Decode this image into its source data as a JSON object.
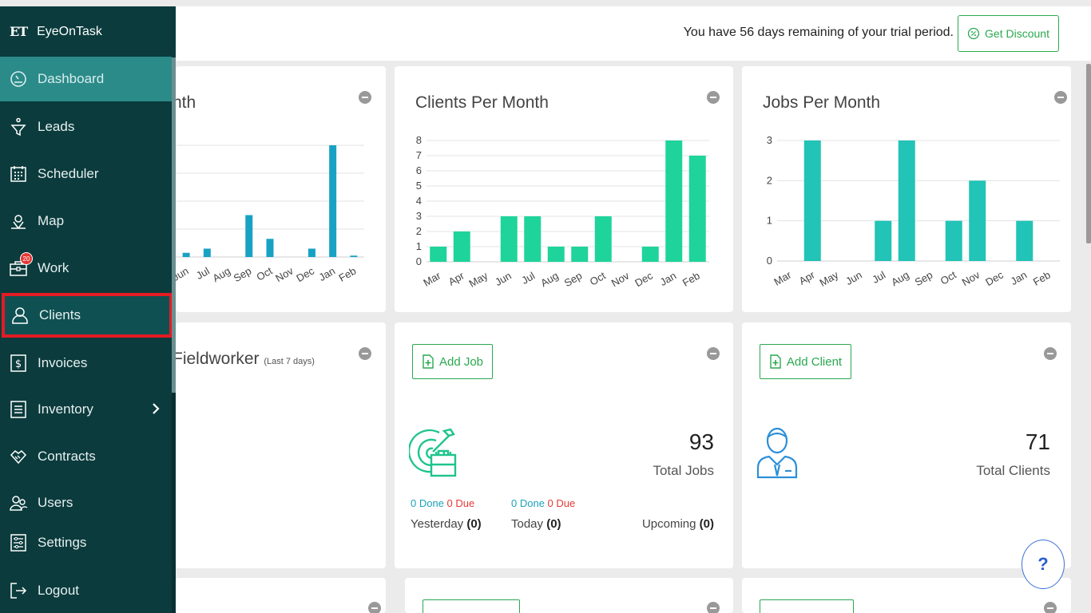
{
  "brand": {
    "logo": "ET",
    "name": "EyeOnTask"
  },
  "sidebar": {
    "items": [
      {
        "label": "Dashboard",
        "icon": "gauge-icon"
      },
      {
        "label": "Leads",
        "icon": "funnel-icon"
      },
      {
        "label": "Scheduler",
        "icon": "calendar-icon"
      },
      {
        "label": "Map",
        "icon": "map-pin-icon"
      },
      {
        "label": "Work",
        "icon": "briefcase-icon",
        "badge": "20"
      },
      {
        "label": "Clients",
        "icon": "user-icon"
      },
      {
        "label": "Invoices",
        "icon": "dollar-icon"
      },
      {
        "label": "Inventory",
        "icon": "list-icon"
      },
      {
        "label": "Contracts",
        "icon": "handshake-icon"
      },
      {
        "label": "Users",
        "icon": "users-icon"
      },
      {
        "label": "Settings",
        "icon": "sliders-icon"
      },
      {
        "label": "Logout",
        "icon": "logout-icon"
      }
    ]
  },
  "topbar": {
    "trial_text": "You have 56 days remaining of your trial period.",
    "discount_label": "Get Discount"
  },
  "cards": {
    "leads_title": "nth",
    "clients_title": "Clients Per Month",
    "jobs_title": "Jobs Per Month",
    "fieldworker_title": "Fieldworker",
    "fieldworker_sub": "(Last 7 days)",
    "add_job": "Add Job",
    "add_client": "Add Client",
    "total_jobs": "93",
    "total_jobs_label": "Total Jobs",
    "total_clients": "71",
    "total_clients_label": "Total Clients",
    "yesterday_done": "0 Done",
    "yesterday_due": "0 Due",
    "today_done": "0 Done",
    "today_due": "0 Due",
    "yesterday_label": "Yesterday",
    "yesterday_count": "(0)",
    "today_label": "Today",
    "today_count": "(0)",
    "upcoming_label": "Upcoming",
    "upcoming_count": "(0)"
  },
  "help": {
    "label": "?"
  },
  "colors": {
    "sidebar": "#0b3b3d",
    "active": "#2b8b89",
    "green": "#2aa84f",
    "teal_bar": "#21c4b6",
    "mint_bar": "#1ed49a",
    "blue_bar": "#17a2c4"
  },
  "chart_data": [
    {
      "type": "bar",
      "categories": [
        "Jun",
        "Jul",
        "Aug",
        "Sep",
        "Oct",
        "Nov",
        "Dec",
        "Jan",
        "Feb"
      ],
      "values": [
        0.3,
        0.6,
        0,
        3,
        1.3,
        0,
        0.6,
        8,
        0.1
      ],
      "title": "nth",
      "ylim": [
        0,
        8.4
      ]
    },
    {
      "type": "bar",
      "categories": [
        "Mar",
        "Apr",
        "May",
        "Jun",
        "Jul",
        "Aug",
        "Sep",
        "Oct",
        "Nov",
        "Dec",
        "Jan",
        "Feb"
      ],
      "values": [
        1,
        2,
        0,
        3,
        3,
        1,
        1,
        3,
        0,
        1,
        8,
        7
      ],
      "title": "Clients Per Month",
      "yticks": [
        0,
        1,
        2,
        3,
        4,
        5,
        6,
        7,
        8
      ],
      "ylim": [
        0,
        8
      ]
    },
    {
      "type": "bar",
      "categories": [
        "Mar",
        "Apr",
        "May",
        "Jun",
        "Jul",
        "Aug",
        "Sep",
        "Oct",
        "Nov",
        "Dec",
        "Jan",
        "Feb"
      ],
      "values": [
        0,
        3,
        0,
        0,
        1,
        3,
        0,
        1,
        2,
        0,
        1,
        0
      ],
      "title": "Jobs Per Month",
      "yticks": [
        0,
        1,
        2,
        3
      ],
      "ylim": [
        0,
        3
      ]
    }
  ]
}
